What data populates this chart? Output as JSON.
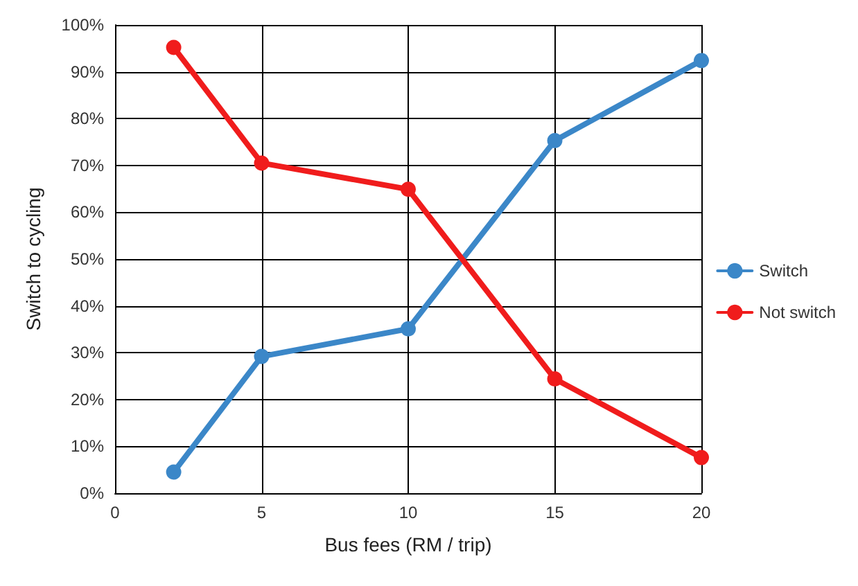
{
  "chart_data": {
    "type": "line",
    "xlabel": "Bus fees (RM / trip)",
    "ylabel": "Switch to cycling",
    "x": [
      2,
      5,
      10,
      15,
      20
    ],
    "series": [
      {
        "name": "Switch",
        "color": "#3b87c8",
        "values": [
          4.5,
          29.2,
          35.1,
          75.3,
          92.4
        ]
      },
      {
        "name": "Not switch",
        "color": "#f01c1c",
        "values": [
          95.2,
          70.5,
          64.9,
          24.4,
          7.6
        ]
      }
    ],
    "xlim": [
      0,
      20
    ],
    "xticks": [
      0,
      5,
      10,
      15,
      20
    ],
    "ylim": [
      0,
      100
    ],
    "yticks": [
      {
        "value": 0,
        "label": "0%"
      },
      {
        "value": 10,
        "label": "10%"
      },
      {
        "value": 20,
        "label": "20%"
      },
      {
        "value": 30,
        "label": "30%"
      },
      {
        "value": 40,
        "label": "40%"
      },
      {
        "value": 50,
        "label": "50%"
      },
      {
        "value": 60,
        "label": "60%"
      },
      {
        "value": 70,
        "label": "70%"
      },
      {
        "value": 80,
        "label": "80%"
      },
      {
        "value": 90,
        "label": "90%"
      },
      {
        "value": 100,
        "label": "100%"
      }
    ],
    "grid": true,
    "legend": "right",
    "marker": "circle",
    "line_style": "solid"
  }
}
